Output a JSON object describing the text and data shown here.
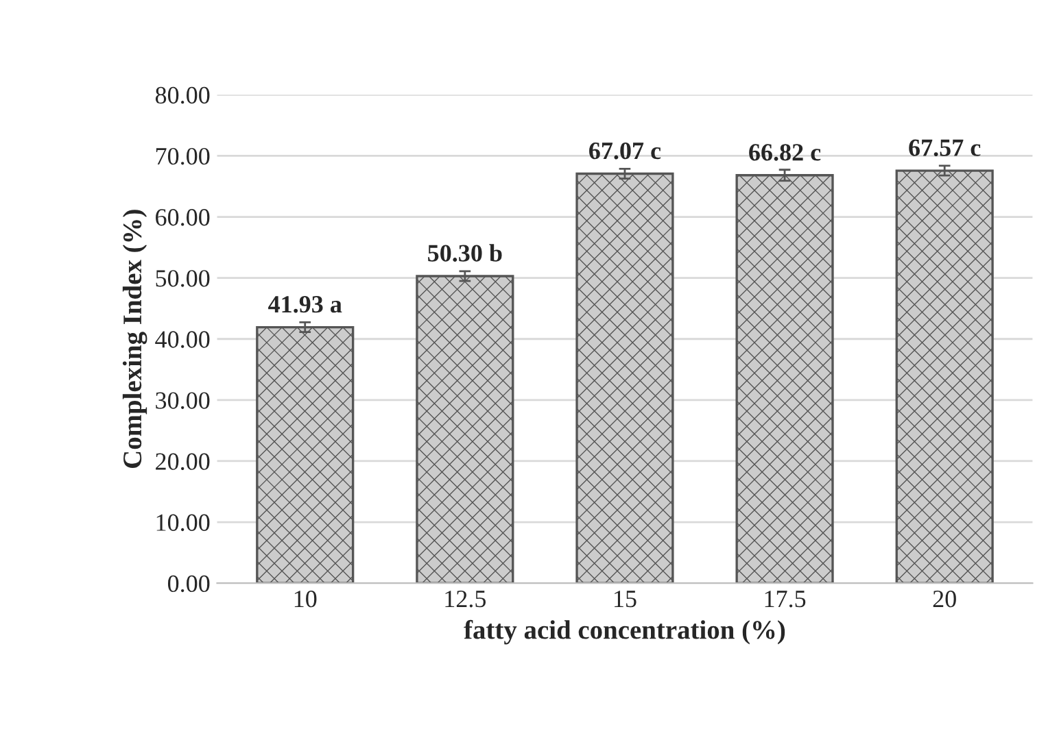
{
  "chart_data": {
    "type": "bar",
    "xlabel": "fatty acid concentration (%)",
    "ylabel": "Complexing Index (%)",
    "categories": [
      "10",
      "12.5",
      "15",
      "17.5",
      "20"
    ],
    "values": [
      41.93,
      50.3,
      67.07,
      66.82,
      67.57
    ],
    "value_labels": [
      "41.93 a",
      "50.30 b",
      "67.07 c",
      "66.82 c",
      "67.57 c"
    ],
    "errors": [
      0.8,
      0.8,
      0.8,
      0.9,
      0.8
    ],
    "color": "#cccccc",
    "ylim": [
      0,
      80
    ],
    "yticks": [
      {
        "value": 0,
        "label": "0.00"
      },
      {
        "value": 10,
        "label": "10.00"
      },
      {
        "value": 20,
        "label": "20.00"
      },
      {
        "value": 30,
        "label": "30.00"
      },
      {
        "value": 40,
        "label": "40.00"
      },
      {
        "value": 50,
        "label": "50.00"
      },
      {
        "value": 60,
        "label": "60.00"
      },
      {
        "value": 70,
        "label": "70.00"
      },
      {
        "value": 80,
        "label": "80.00"
      }
    ],
    "grid": "y"
  }
}
